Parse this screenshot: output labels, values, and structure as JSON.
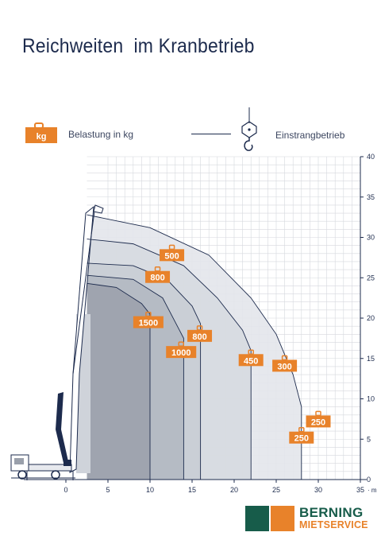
{
  "title": "Reichweiten  im Kranbetrieb",
  "legend": {
    "weight_badge": "kg",
    "weight_label": "Belastung in kg",
    "line_label": "Einstrangbetrieb"
  },
  "colors": {
    "accent_orange": "#e8822a",
    "navy": "#1d2b4d",
    "grid": "#d6d8de",
    "envelope_light": "#dfe3e8",
    "envelope_dark": "#9aa0ab"
  },
  "chart_data": {
    "type": "load-chart",
    "x_unit": "m",
    "xlim": [
      -5,
      35
    ],
    "ylim": [
      0,
      40
    ],
    "x_ticks": [
      "0",
      "5",
      "10",
      "15",
      "20",
      "25",
      "30",
      "35"
    ],
    "y_ticks": [
      "0",
      "5",
      "10",
      "15",
      "20",
      "25",
      "30",
      "35",
      "40"
    ],
    "arcs": [
      {
        "name": "outer",
        "points": [
          [
            2.5,
            32.8
          ],
          [
            10,
            31.2
          ],
          [
            17,
            27.8
          ],
          [
            22,
            22.5
          ],
          [
            25,
            18
          ],
          [
            27,
            13
          ],
          [
            28,
            9
          ],
          [
            28,
            0
          ]
        ]
      },
      {
        "name": "arc2",
        "points": [
          [
            2.5,
            29.8
          ],
          [
            8,
            29.2
          ],
          [
            14,
            26.5
          ],
          [
            18,
            22.5
          ],
          [
            21,
            18.5
          ],
          [
            22,
            16
          ],
          [
            22,
            0
          ]
        ]
      },
      {
        "name": "arc3",
        "points": [
          [
            2.5,
            26.8
          ],
          [
            8,
            26.5
          ],
          [
            12,
            24.8
          ],
          [
            15,
            21.5
          ],
          [
            16,
            19.3
          ],
          [
            16,
            0
          ]
        ]
      },
      {
        "name": "arc4",
        "points": [
          [
            2.5,
            25.3
          ],
          [
            8,
            24.8
          ],
          [
            11.5,
            22.5
          ],
          [
            13.5,
            18.5
          ],
          [
            14,
            17.5
          ],
          [
            14,
            0
          ]
        ]
      },
      {
        "name": "inner",
        "points": [
          [
            2.5,
            24.3
          ],
          [
            6,
            23.8
          ],
          [
            9,
            21.8
          ],
          [
            10,
            20.5
          ],
          [
            10,
            0
          ]
        ]
      }
    ],
    "load_labels": [
      {
        "value": "500",
        "x": 12.6,
        "y": 27.8
      },
      {
        "value": "800",
        "x": 10.9,
        "y": 25.1
      },
      {
        "value": "1500",
        "x": 9.8,
        "y": 19.5
      },
      {
        "value": "800",
        "x": 15.9,
        "y": 17.8
      },
      {
        "value": "1000",
        "x": 13.7,
        "y": 15.8
      },
      {
        "value": "450",
        "x": 22.0,
        "y": 14.8
      },
      {
        "value": "300",
        "x": 26.0,
        "y": 14.1
      },
      {
        "value": "250",
        "x": 30.0,
        "y": 7.2
      },
      {
        "value": "250",
        "x": 28.0,
        "y": 5.2
      }
    ]
  },
  "logo": {
    "brand": "BERNING",
    "sub": "MIETSERVICE"
  }
}
